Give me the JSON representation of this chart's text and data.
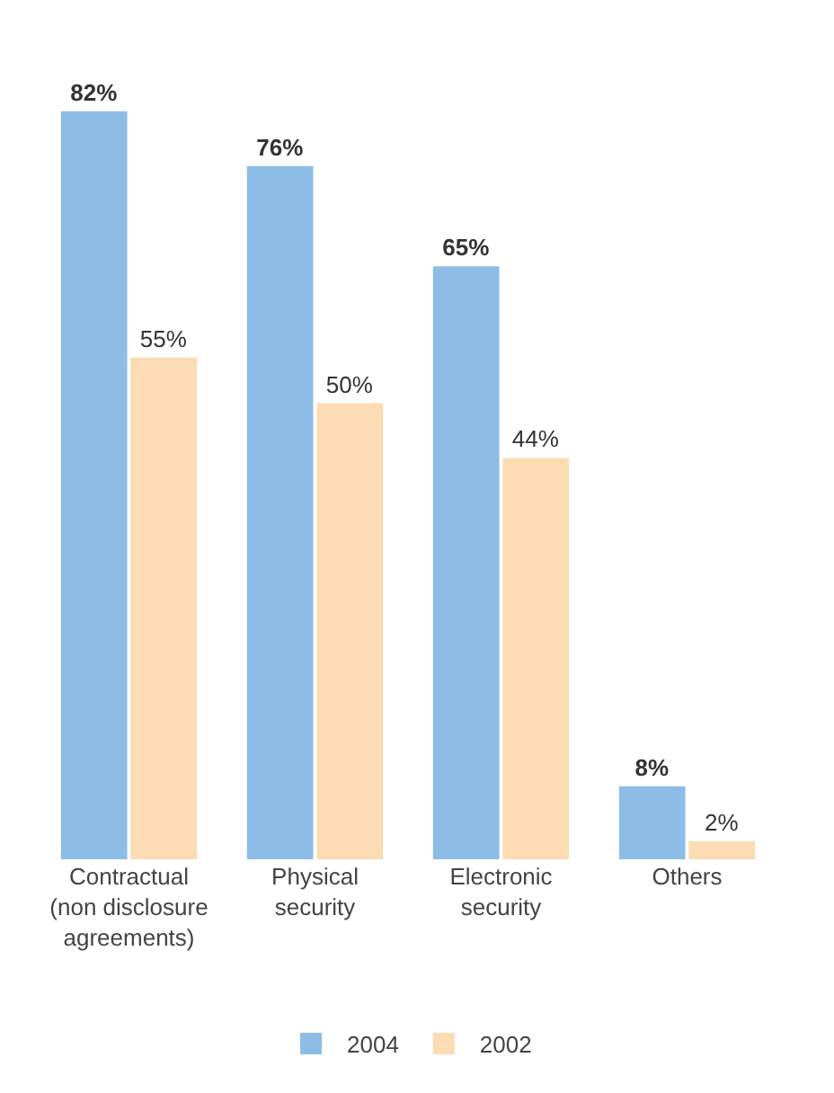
{
  "chart_data": {
    "type": "bar",
    "categories": [
      "Contractual\n(non disclosure\nagreements)",
      "Physical\nsecurity",
      "Electronic\nsecurity",
      "Others"
    ],
    "series": [
      {
        "name": "2004",
        "color": "#8dbde6",
        "values": [
          82,
          76,
          65,
          8
        ],
        "value_labels": [
          "82%",
          "76%",
          "65%",
          "8%"
        ]
      },
      {
        "name": "2002",
        "color": "#fbdcb3",
        "values": [
          55,
          50,
          44,
          2
        ],
        "value_labels": [
          "55%",
          "50%",
          "44%",
          "2%"
        ]
      }
    ],
    "legend": "bottom"
  }
}
